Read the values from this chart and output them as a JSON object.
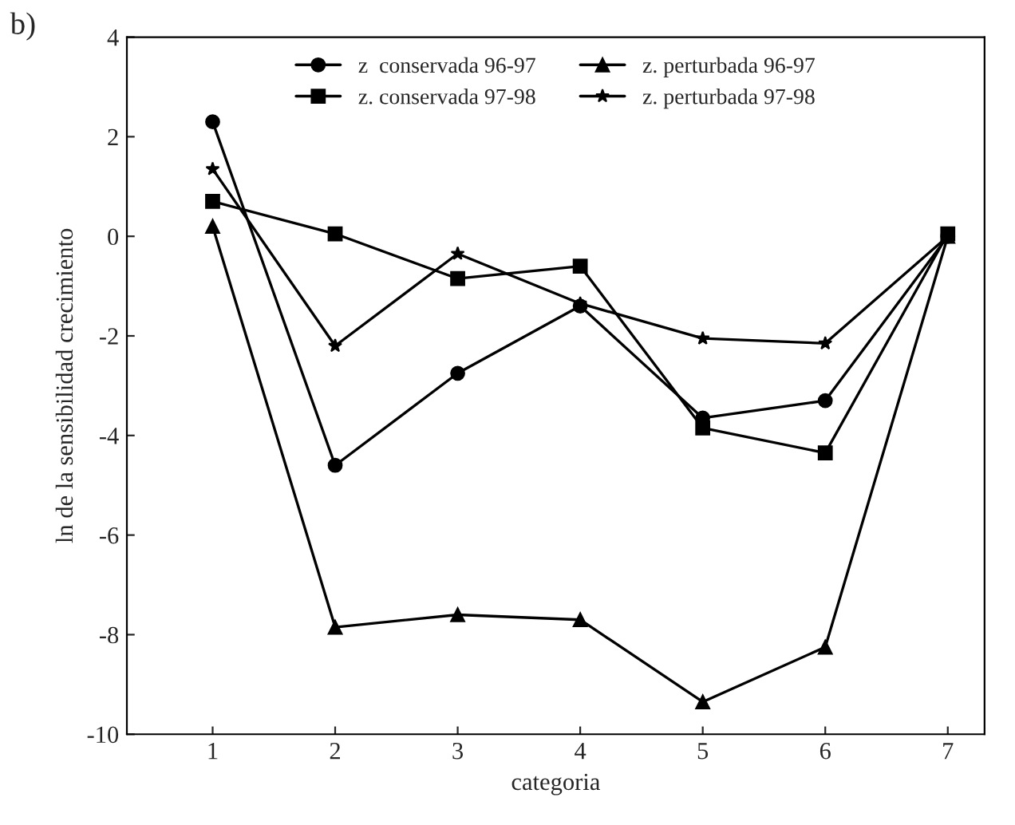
{
  "chart_data": {
    "type": "line",
    "xlabel": "categoria",
    "ylabel": "ln de la sensibilidad crecimiento",
    "categories": [
      "1",
      "2",
      "3",
      "4",
      "5",
      "6",
      "7"
    ],
    "series": [
      {
        "name": "z  conservada 96-97",
        "color": "#000000",
        "marker": "circle",
        "values": [
          2.3,
          -4.6,
          -2.75,
          -1.4,
          -3.65,
          -3.3,
          0
        ]
      },
      {
        "name": "z. conservada 97-98",
        "color": "#000000",
        "marker": "square",
        "values": [
          0.7,
          0.05,
          -0.85,
          -0.6,
          -3.85,
          -4.35,
          0.05
        ]
      },
      {
        "name": "z. perturbada 96-97",
        "color": "#000000",
        "marker": "triangle",
        "values": [
          0.2,
          -7.85,
          -7.6,
          -7.7,
          -9.35,
          -8.25,
          0
        ]
      },
      {
        "name": "z. perturbada 97-98",
        "color": "#000000",
        "marker": "star",
        "values": [
          1.35,
          -2.2,
          -0.35,
          -1.35,
          -2.05,
          -2.15,
          0
        ]
      }
    ],
    "ylim": [
      -10,
      4
    ],
    "yticks": [
      -10,
      -8,
      -6,
      -4,
      -2,
      0,
      2,
      4
    ],
    "grid": false,
    "legend": "top",
    "annotations": [
      "b)"
    ]
  }
}
